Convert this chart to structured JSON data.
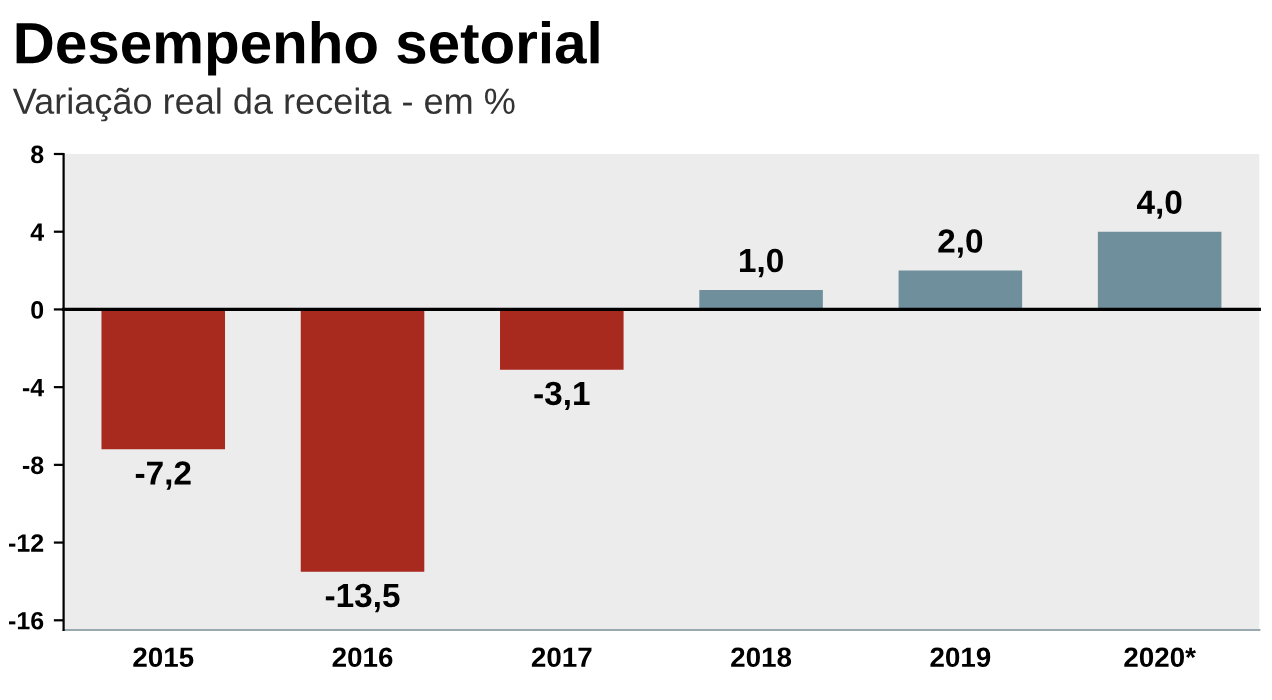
{
  "chart_data": {
    "type": "bar",
    "title": "Desempenho setorial",
    "subtitle": "Variação real da receita - em %",
    "categories": [
      "2015",
      "2016",
      "2017",
      "2018",
      "2019",
      "2020*"
    ],
    "values": [
      -7.2,
      -13.5,
      -3.1,
      1.0,
      2.0,
      4.0
    ],
    "value_labels": [
      "-7,2",
      "-13,5",
      "-3,1",
      "1,0",
      "2,0",
      "4,0"
    ],
    "colors": [
      "#a8291e",
      "#a8291e",
      "#a8291e",
      "#6f8f9d",
      "#6f8f9d",
      "#6f8f9d"
    ],
    "ylim": [
      -16.5,
      8
    ],
    "yticks": [
      -16,
      -12,
      -8,
      -4,
      0,
      4,
      8
    ],
    "legend": false
  }
}
